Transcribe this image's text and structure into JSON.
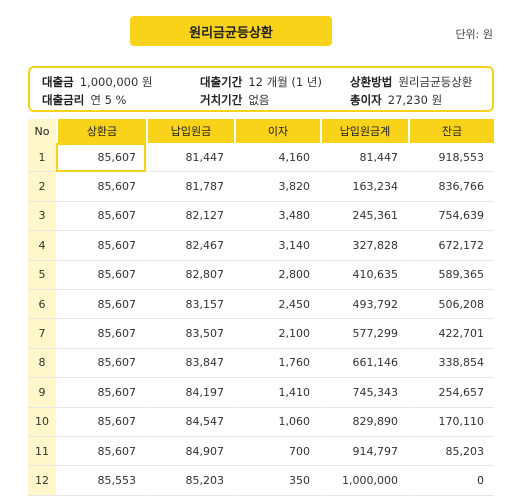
{
  "title": "원리금균등상환",
  "unit": "단위: 원",
  "info": {
    "loan_amount_label": "대출금",
    "loan_amount_value": "1,000,000 원",
    "period_label": "대출기간",
    "period_value": "12 개월 (1 년)",
    "method_label": "상환방법",
    "method_value": "원리금균등상환",
    "rate_label": "대출금리",
    "rate_value": "연 5 %",
    "grace_label": "거치기간",
    "grace_value": "없음",
    "total_interest_label": "총이자",
    "total_interest_value": "27,230 원"
  },
  "table": {
    "headers": [
      "No",
      "상환금",
      "납입원금",
      "이자",
      "납입원금계",
      "잔금"
    ],
    "rows": [
      [
        "1",
        "85,607",
        "81,447",
        "4,160",
        "81,447",
        "918,553"
      ],
      [
        "2",
        "85,607",
        "81,787",
        "3,820",
        "163,234",
        "836,766"
      ],
      [
        "3",
        "85,607",
        "82,127",
        "3,480",
        "245,361",
        "754,639"
      ],
      [
        "4",
        "85,607",
        "82,467",
        "3,140",
        "327,828",
        "672,172"
      ],
      [
        "5",
        "85,607",
        "82,807",
        "2,800",
        "410,635",
        "589,365"
      ],
      [
        "6",
        "85,607",
        "83,157",
        "2,450",
        "493,792",
        "506,208"
      ],
      [
        "7",
        "85,607",
        "83,507",
        "2,100",
        "577,299",
        "422,701"
      ],
      [
        "8",
        "85,607",
        "83,847",
        "1,760",
        "661,146",
        "338,854"
      ],
      [
        "9",
        "85,607",
        "84,197",
        "1,410",
        "745,343",
        "254,657"
      ],
      [
        "10",
        "85,607",
        "84,547",
        "1,060",
        "829,890",
        "170,110"
      ],
      [
        "11",
        "85,607",
        "84,907",
        "700",
        "914,797",
        "85,203"
      ],
      [
        "12",
        "85,553",
        "85,203",
        "350",
        "1,000,000",
        "0"
      ]
    ]
  },
  "colors": {
    "accent": "#f9d21a",
    "row_header": "#fff6c9"
  }
}
